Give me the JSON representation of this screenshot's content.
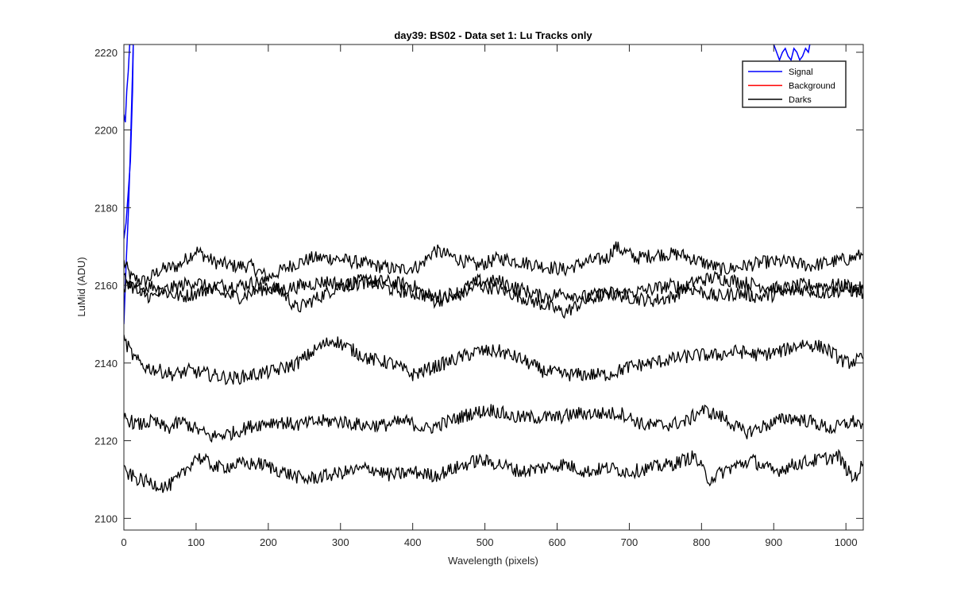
{
  "chart_data": {
    "type": "line",
    "title": "day39: BS02 - Data set 1: Lu Tracks only",
    "xlabel": "Wavelength (pixels)",
    "ylabel": "LuMid (ADU)",
    "xlim": [
      0,
      1024
    ],
    "ylim": [
      2097,
      2222
    ],
    "xticks": [
      0,
      100,
      200,
      300,
      400,
      500,
      600,
      700,
      800,
      900,
      1000
    ],
    "yticks": [
      2100,
      2120,
      2140,
      2160,
      2180,
      2200,
      2220
    ],
    "grid": false,
    "legend": {
      "placement": "top-right",
      "entries": [
        {
          "label": "Signal",
          "color": "#0000ff"
        },
        {
          "label": "Background",
          "color": "#ff0000"
        },
        {
          "label": "Darks",
          "color": "#000000"
        }
      ]
    },
    "series": [
      {
        "name": "Signal",
        "color": "#0000ff",
        "x": [
          0,
          2,
          4,
          6,
          8,
          10,
          12,
          13
        ],
        "y": [
          2204,
          2202,
          2210,
          2215,
          2222,
          2222,
          2222,
          2222
        ]
      },
      {
        "name": "Signal",
        "color": "#0000ff",
        "x": [
          0,
          3,
          6,
          9,
          12,
          13
        ],
        "y": [
          2172,
          2176,
          2184,
          2192,
          2210,
          2222
        ]
      },
      {
        "name": "Signal",
        "color": "#0000ff",
        "x": [
          0,
          3,
          6,
          9,
          12,
          13
        ],
        "y": [
          2150,
          2165,
          2178,
          2195,
          2215,
          2222
        ]
      },
      {
        "name": "Signal",
        "color": "#0000ff",
        "x": [
          900,
          904,
          908,
          912,
          916,
          920,
          924,
          928,
          932,
          936,
          940,
          944,
          948,
          950
        ],
        "y": [
          2222,
          2220,
          2218,
          2220,
          2221,
          2219,
          2218,
          2221,
          2220,
          2218,
          2219,
          2221,
          2220,
          2222
        ]
      },
      {
        "name": "Darks",
        "color": "#000000",
        "x": [
          0,
          10,
          30,
          50,
          75,
          100,
          125,
          150,
          175,
          200,
          230,
          260,
          290,
          320,
          350,
          380,
          410,
          430,
          460,
          490,
          520,
          550,
          580,
          610,
          640,
          670,
          680,
          710,
          740,
          770,
          800,
          830,
          860,
          890,
          920,
          950,
          980,
          1010,
          1024
        ],
        "y": [
          2166,
          2162,
          2161,
          2164,
          2165,
          2169,
          2166,
          2165,
          2165,
          2162,
          2165,
          2167,
          2167,
          2166,
          2165,
          2164,
          2165,
          2169,
          2167,
          2165,
          2167,
          2166,
          2165,
          2164,
          2166,
          2167,
          2170,
          2167,
          2168,
          2168,
          2166,
          2164,
          2165,
          2166,
          2166,
          2165,
          2166,
          2167,
          2168
        ]
      },
      {
        "name": "Darks",
        "color": "#000000",
        "x": [
          0,
          20,
          40,
          60,
          80,
          100,
          130,
          160,
          190,
          220,
          240,
          260,
          290,
          320,
          360,
          400,
          430,
          460,
          490,
          520,
          550,
          580,
          610,
          640,
          670,
          700,
          730,
          760,
          790,
          820,
          850,
          880,
          910,
          940,
          970,
          1000,
          1024
        ],
        "y": [
          2160,
          2159,
          2160,
          2158,
          2157,
          2158,
          2160,
          2160,
          2161,
          2158,
          2154,
          2156,
          2159,
          2161,
          2161,
          2160,
          2156,
          2157,
          2160,
          2159,
          2157,
          2155,
          2153,
          2156,
          2158,
          2157,
          2156,
          2157,
          2161,
          2162,
          2161,
          2160,
          2159,
          2160,
          2160,
          2160,
          2159
        ]
      },
      {
        "name": "Darks",
        "color": "#000000",
        "x": [
          0,
          20,
          40,
          60,
          80,
          100,
          130,
          160,
          190,
          220,
          250,
          280,
          310,
          340,
          370,
          400,
          430,
          460,
          490,
          520,
          550,
          580,
          610,
          640,
          670,
          700,
          730,
          760,
          790,
          820,
          850,
          880,
          910,
          940,
          970,
          1000,
          1024
        ],
        "y": [
          2162,
          2158,
          2157,
          2159,
          2160,
          2161,
          2158,
          2157,
          2159,
          2159,
          2160,
          2161,
          2160,
          2161,
          2159,
          2158,
          2157,
          2158,
          2161,
          2161,
          2159,
          2157,
          2158,
          2157,
          2158,
          2158,
          2159,
          2160,
          2159,
          2157,
          2158,
          2157,
          2158,
          2159,
          2158,
          2159,
          2158
        ]
      },
      {
        "name": "Darks",
        "color": "#000000",
        "x": [
          0,
          15,
          30,
          50,
          70,
          90,
          120,
          150,
          180,
          210,
          240,
          270,
          290,
          310,
          340,
          370,
          400,
          430,
          460,
          490,
          520,
          550,
          580,
          610,
          640,
          670,
          700,
          730,
          760,
          790,
          820,
          850,
          880,
          910,
          940,
          970,
          1000,
          1024
        ],
        "y": [
          2146,
          2141,
          2139,
          2138,
          2137,
          2138,
          2137,
          2136,
          2137,
          2138,
          2140,
          2144,
          2146,
          2144,
          2141,
          2140,
          2137,
          2139,
          2141,
          2143,
          2143,
          2141,
          2138,
          2137,
          2137,
          2137,
          2139,
          2140,
          2141,
          2142,
          2142,
          2143,
          2142,
          2143,
          2145,
          2144,
          2140,
          2141
        ]
      },
      {
        "name": "Darks",
        "color": "#000000",
        "x": [
          0,
          20,
          40,
          60,
          80,
          100,
          120,
          150,
          180,
          210,
          240,
          270,
          300,
          330,
          360,
          390,
          420,
          450,
          480,
          510,
          540,
          570,
          600,
          630,
          660,
          690,
          720,
          750,
          780,
          800,
          830,
          860,
          890,
          920,
          950,
          980,
          1010,
          1024
        ],
        "y": [
          2126,
          2124,
          2125,
          2123,
          2125,
          2123,
          2121,
          2122,
          2124,
          2125,
          2124,
          2125,
          2125,
          2124,
          2124,
          2125,
          2123,
          2125,
          2127,
          2128,
          2126,
          2126,
          2126,
          2127,
          2127,
          2127,
          2124,
          2124,
          2125,
          2128,
          2126,
          2122,
          2124,
          2126,
          2125,
          2123,
          2125,
          2124
        ]
      },
      {
        "name": "Darks",
        "color": "#000000",
        "x": [
          0,
          20,
          40,
          60,
          80,
          100,
          130,
          160,
          190,
          220,
          250,
          280,
          310,
          340,
          370,
          400,
          430,
          460,
          490,
          520,
          550,
          580,
          610,
          640,
          670,
          700,
          730,
          760,
          790,
          810,
          840,
          870,
          900,
          930,
          960,
          990,
          1010,
          1024
        ],
        "y": [
          2112,
          2110,
          2109,
          2108,
          2111,
          2116,
          2113,
          2114,
          2114,
          2112,
          2110,
          2111,
          2112,
          2113,
          2111,
          2112,
          2111,
          2113,
          2115,
          2114,
          2112,
          2113,
          2114,
          2112,
          2113,
          2112,
          2113,
          2114,
          2116,
          2110,
          2113,
          2115,
          2112,
          2114,
          2115,
          2116,
          2110,
          2114
        ]
      }
    ]
  }
}
